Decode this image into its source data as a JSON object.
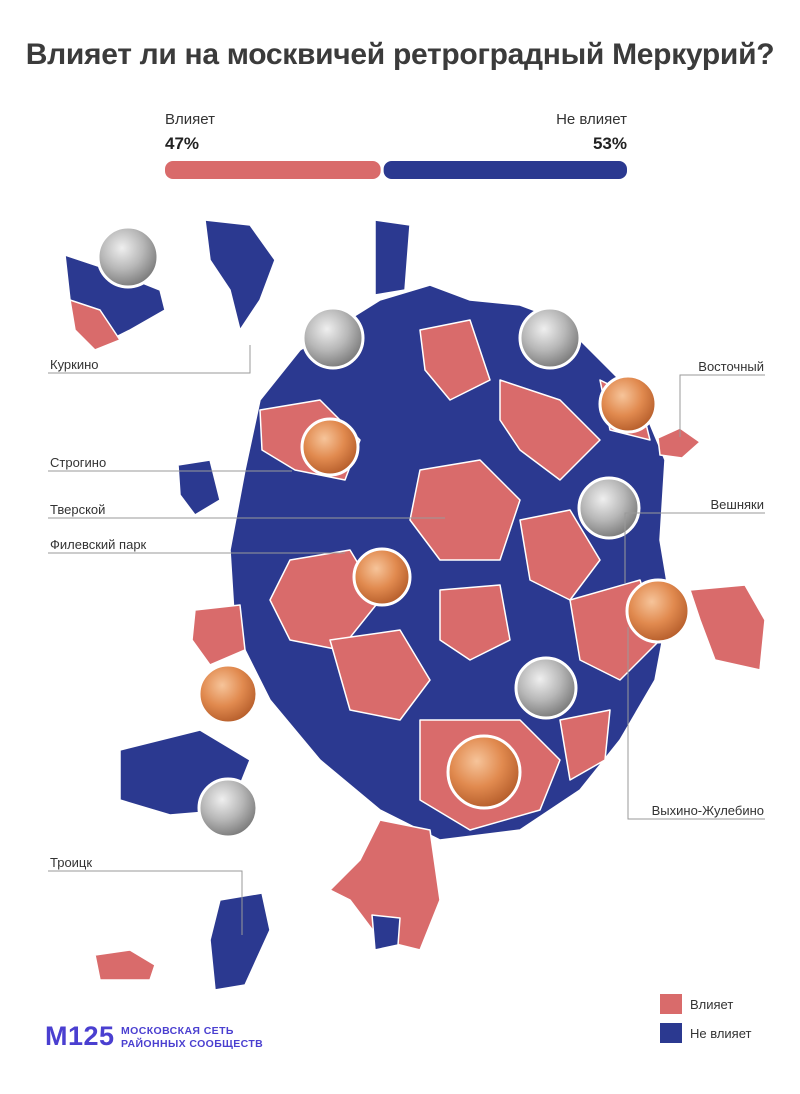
{
  "title": "Влияет ли на москвичей ретроградный Меркурий?",
  "chart_data": {
    "type": "bar",
    "categories": [
      "Влияет",
      "Не влияет"
    ],
    "values": [
      47,
      53
    ],
    "value_labels": [
      "47%",
      "53%"
    ],
    "colors": {
      "affects": "#d96b6b",
      "not_affects": "#2b3990"
    },
    "legend": [
      {
        "label": "Влияет",
        "color": "#d96b6b"
      },
      {
        "label": "Не влияет",
        "color": "#2b3990"
      }
    ],
    "legend_position": "bottom-right"
  },
  "map": {
    "callouts": [
      "Куркино",
      "Строгино",
      "Тверской",
      "Филевский парк",
      "Троицк",
      "Восточный",
      "Вешняки",
      "Выхино-Жулебино"
    ]
  },
  "brand": {
    "logo": "M125",
    "line1": "МОСКОВСКАЯ СЕТЬ",
    "line2": "РАЙОННЫХ СООБЩЕСТВ"
  }
}
